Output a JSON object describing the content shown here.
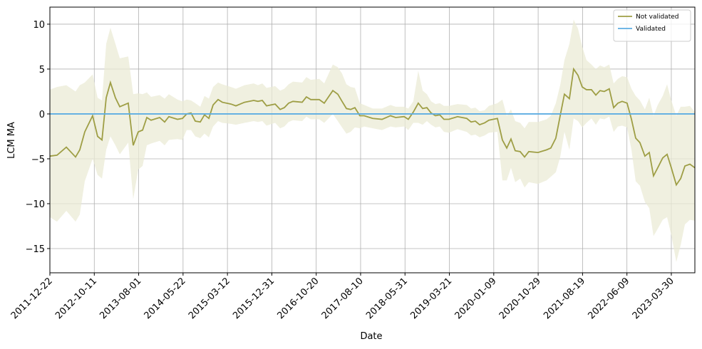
{
  "chart_data": {
    "type": "line",
    "xlabel": "Date",
    "ylabel": "LCM MA",
    "xlim": [
      "2011-12-22",
      "2023-09-02"
    ],
    "xticks": [
      "2011-12-22",
      "2012-10-11",
      "2013-08-01",
      "2014-05-22",
      "2015-03-12",
      "2015-12-31",
      "2016-10-20",
      "2017-08-10",
      "2018-05-31",
      "2019-03-21",
      "2020-01-09",
      "2020-10-29",
      "2021-08-19",
      "2022-06-09",
      "2023-03-30"
    ],
    "ylim": [
      -17.7,
      11.9
    ],
    "yticks": [
      {
        "value": -15,
        "label": "−15"
      },
      {
        "value": -10,
        "label": "−10"
      },
      {
        "value": -5,
        "label": "−5"
      },
      0,
      5,
      10
    ],
    "grid": true,
    "legend": "upper right",
    "series": [
      {
        "name": "Not validated",
        "color": "#9e9e45",
        "band_color": "#ebebd5",
        "x": [
          "2011-12-22",
          "2012-02-07",
          "2012-04-09",
          "2012-06-09",
          "2012-07-07",
          "2012-08-09",
          "2012-09-30",
          "2012-11-02",
          "2012-12-01",
          "2012-12-29",
          "2013-01-26",
          "2013-02-28",
          "2013-03-29",
          "2013-05-24",
          "2013-06-26",
          "2013-07-29",
          "2013-08-27",
          "2013-09-24",
          "2013-10-22",
          "2013-12-18",
          "2014-01-20",
          "2014-02-17",
          "2014-04-15",
          "2014-05-18",
          "2014-06-15",
          "2014-07-14",
          "2014-08-11",
          "2014-09-13",
          "2014-10-11",
          "2014-11-09",
          "2014-12-07",
          "2015-01-09",
          "2015-02-06",
          "2015-04-04",
          "2015-05-07",
          "2015-07-03",
          "2015-09-02",
          "2015-09-30",
          "2015-10-29",
          "2015-11-26",
          "2016-01-22",
          "2016-02-24",
          "2016-03-23",
          "2016-04-20",
          "2016-05-19",
          "2016-07-19",
          "2016-08-16",
          "2016-09-14",
          "2016-11-09",
          "2016-12-12",
          "2017-02-07",
          "2017-03-12",
          "2017-04-09",
          "2017-05-08",
          "2017-06-05",
          "2017-07-03",
          "2017-08-05",
          "2017-09-03",
          "2017-10-29",
          "2017-12-30",
          "2018-02-24",
          "2018-03-30",
          "2018-05-25",
          "2018-06-22",
          "2018-07-25",
          "2018-08-27",
          "2018-09-25",
          "2018-10-23",
          "2018-11-20",
          "2018-12-19",
          "2019-01-16",
          "2019-02-13",
          "2019-03-18",
          "2019-05-14",
          "2019-07-14",
          "2019-08-12",
          "2019-09-09",
          "2019-10-07",
          "2019-11-09",
          "2019-12-08",
          "2020-02-02",
          "2020-03-06",
          "2020-04-04",
          "2020-05-02",
          "2020-05-30",
          "2020-07-02",
          "2020-07-31",
          "2020-08-28",
          "2020-10-28",
          "2020-12-24",
          "2021-01-21",
          "2021-02-23",
          "2021-03-24",
          "2021-04-21",
          "2021-05-24",
          "2021-06-21",
          "2021-07-20",
          "2021-08-17",
          "2021-09-14",
          "2021-10-17",
          "2021-11-15",
          "2021-12-13",
          "2022-01-10",
          "2022-02-12",
          "2022-03-13",
          "2022-04-10",
          "2022-05-08",
          "2022-06-10",
          "2022-07-09",
          "2022-08-06",
          "2022-09-03",
          "2022-10-06",
          "2022-11-04",
          "2022-12-02",
          "2022-12-30",
          "2023-02-01",
          "2023-03-02",
          "2023-03-30",
          "2023-05-02",
          "2023-05-31",
          "2023-06-28",
          "2023-07-31",
          "2023-09-02"
        ],
        "values": [
          -4.7,
          -4.6,
          -3.7,
          -4.8,
          -4.0,
          -2.0,
          -0.2,
          -2.5,
          -2.9,
          1.8,
          3.5,
          1.8,
          0.8,
          1.2,
          -3.5,
          -2.0,
          -1.8,
          -0.4,
          -0.7,
          -0.4,
          -0.9,
          -0.3,
          -0.6,
          -0.5,
          0.0,
          0.1,
          -0.8,
          -0.9,
          -0.1,
          -0.5,
          1.0,
          1.6,
          1.3,
          1.1,
          0.9,
          1.3,
          1.5,
          1.4,
          1.5,
          0.9,
          1.1,
          0.5,
          0.7,
          1.2,
          1.4,
          1.3,
          1.9,
          1.6,
          1.6,
          1.2,
          2.6,
          2.2,
          1.4,
          0.6,
          0.5,
          0.7,
          -0.2,
          -0.2,
          -0.5,
          -0.6,
          -0.2,
          -0.4,
          -0.3,
          -0.6,
          0.2,
          1.2,
          0.6,
          0.7,
          0.1,
          -0.2,
          -0.1,
          -0.6,
          -0.6,
          -0.3,
          -0.5,
          -0.9,
          -0.8,
          -1.2,
          -1.0,
          -0.7,
          -0.5,
          -2.9,
          -3.8,
          -2.8,
          -4.1,
          -4.2,
          -4.8,
          -4.2,
          -4.3,
          -4.0,
          -3.8,
          -2.7,
          -0.2,
          2.2,
          1.7,
          5.0,
          4.3,
          3.0,
          2.7,
          2.7,
          2.1,
          2.6,
          2.5,
          2.8,
          0.7,
          1.2,
          1.4,
          1.2,
          -0.6,
          -2.7,
          -3.2,
          -4.7,
          -4.3,
          -6.9,
          -6.0,
          -4.9,
          -4.5,
          -6.0,
          -7.9,
          -7.2,
          -5.8,
          -5.6,
          -6.0
        ],
        "lower": [
          -11.5,
          -12,
          -10.8,
          -12,
          -11.2,
          -7.5,
          -5,
          -6.8,
          -7.2,
          -4,
          -2.5,
          -3.5,
          -4.5,
          -3.2,
          -9.5,
          -6.2,
          -5.8,
          -3.5,
          -3.3,
          -3.0,
          -3.5,
          -2.9,
          -2.8,
          -2.9,
          -1.8,
          -1.8,
          -2.5,
          -2.7,
          -2.2,
          -2.6,
          -1.4,
          -0.8,
          -1.0,
          -1.1,
          -1.2,
          -1.0,
          -0.8,
          -0.9,
          -0.8,
          -1.3,
          -1.0,
          -1.6,
          -1.4,
          -0.9,
          -0.7,
          -0.8,
          -0.3,
          -0.6,
          -0.6,
          -1.0,
          0.0,
          -0.8,
          -1.5,
          -2.2,
          -2.0,
          -1.5,
          -1.6,
          -1.4,
          -1.6,
          -1.8,
          -1.4,
          -1.5,
          -1.4,
          -1.8,
          -1.0,
          -1.0,
          -1.2,
          -0.8,
          -1.2,
          -1.5,
          -1.4,
          -2.0,
          -2.1,
          -1.7,
          -2.0,
          -2.4,
          -2.3,
          -2.6,
          -2.4,
          -2.1,
          -2.0,
          -7.4,
          -7.4,
          -6.0,
          -7.6,
          -7.2,
          -8.2,
          -7.6,
          -7.8,
          -7.4,
          -7.0,
          -6.5,
          -4.8,
          -2.0,
          -4.0,
          -0.5,
          -0.8,
          -1.5,
          -1.0,
          -0.5,
          -1.2,
          -0.5,
          -0.6,
          -0.3,
          -2.0,
          -1.4,
          -1.3,
          -1.5,
          -4.0,
          -7.5,
          -8.0,
          -9.8,
          -10.5,
          -13.6,
          -12.8,
          -11.8,
          -11.5,
          -13.5,
          -16.5,
          -14.6,
          -12.3,
          -11.8,
          -11.9
        ],
        "upper": [
          2.7,
          3.0,
          3.2,
          2.5,
          3.2,
          3.5,
          4.4,
          1.8,
          1.5,
          7.8,
          9.6,
          7.8,
          6.2,
          6.4,
          2.2,
          2.3,
          2.2,
          2.4,
          1.9,
          2.1,
          1.7,
          2.2,
          1.6,
          1.4,
          1.6,
          1.5,
          1.2,
          0.8,
          2.0,
          1.7,
          3.0,
          3.5,
          3.3,
          3.0,
          2.8,
          3.2,
          3.4,
          3.2,
          3.4,
          2.9,
          3.1,
          2.6,
          2.8,
          3.3,
          3.6,
          3.5,
          4.1,
          3.8,
          3.9,
          3.4,
          5.5,
          5.2,
          4.5,
          3.3,
          3.0,
          2.9,
          1.2,
          1.0,
          0.6,
          0.6,
          1.0,
          0.8,
          0.8,
          0.6,
          1.4,
          4.8,
          2.6,
          2.2,
          1.4,
          1.1,
          1.2,
          0.9,
          0.9,
          1.1,
          1.0,
          0.6,
          0.7,
          0.3,
          0.4,
          0.9,
          1.2,
          1.6,
          -0.2,
          0.5,
          -0.8,
          -1.0,
          -1.6,
          -0.9,
          -0.9,
          -0.6,
          -0.2,
          1.2,
          3.2,
          6.0,
          7.8,
          10.5,
          9.5,
          7.5,
          6.0,
          5.5,
          5.0,
          5.4,
          5.2,
          5.5,
          3.4,
          3.9,
          4.2,
          4.1,
          2.8,
          2.0,
          1.5,
          0.5,
          1.8,
          -0.2,
          1.0,
          2.0,
          3.3,
          1.5,
          -0.2,
          0.8,
          0.8,
          0.9,
          0.2
        ]
      },
      {
        "name": "Validated",
        "color": "#5dade2",
        "x": [
          "2011-12-22",
          "2023-09-02"
        ],
        "values": [
          0,
          0
        ]
      }
    ]
  }
}
